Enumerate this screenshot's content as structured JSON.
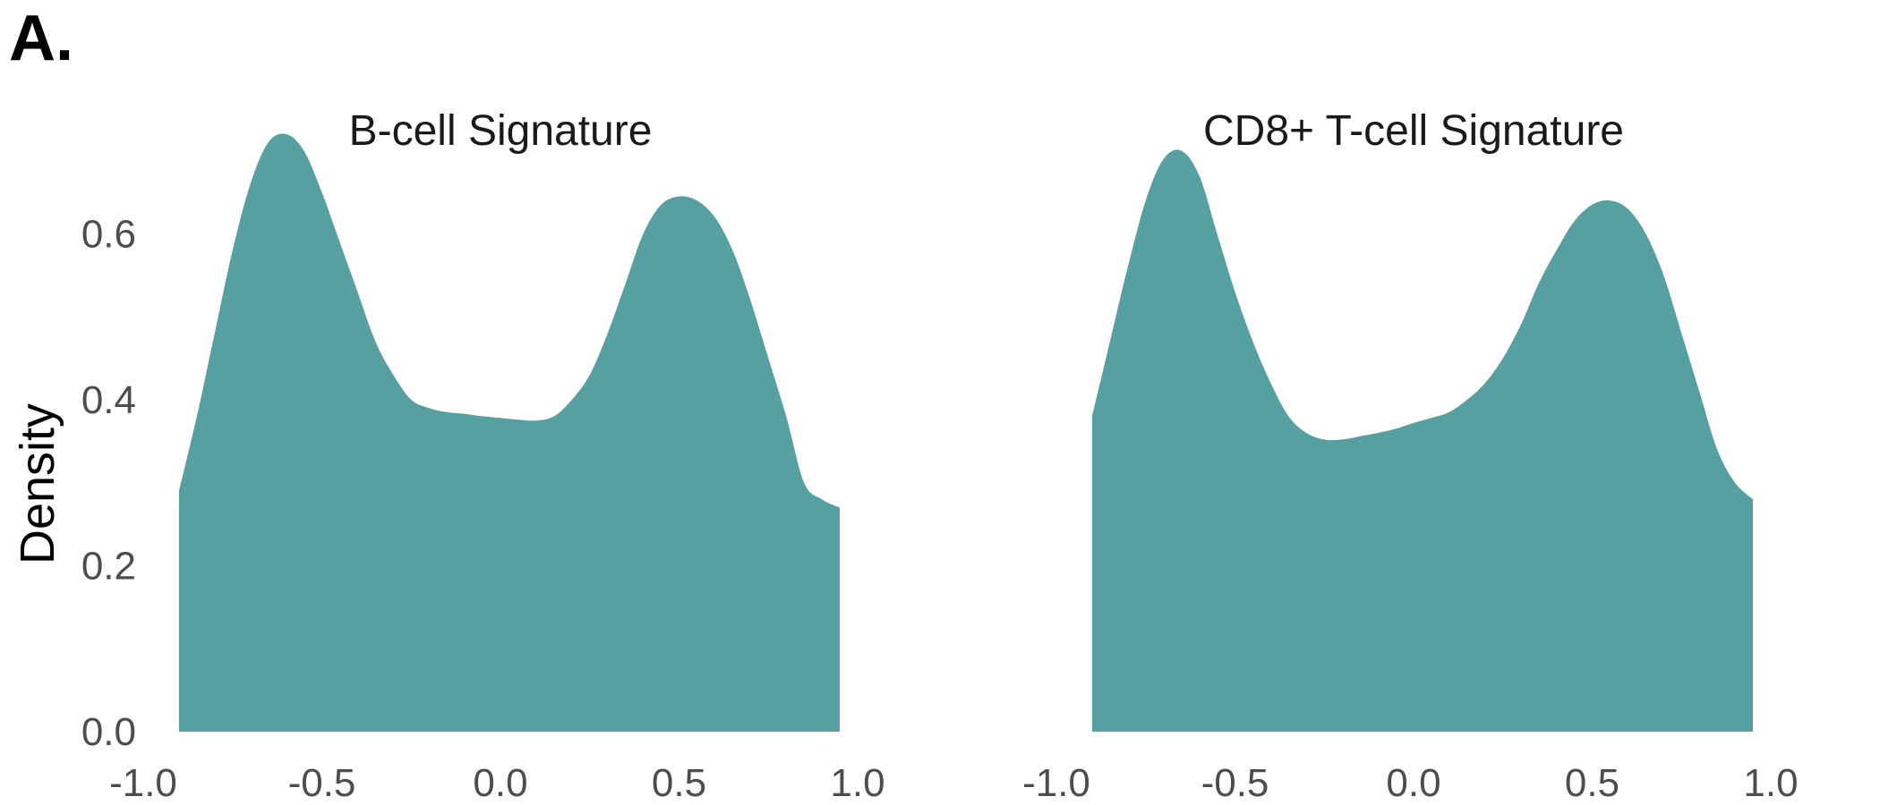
{
  "figure": {
    "panel_label": "A.",
    "ylabel": "Density"
  },
  "chart_data": [
    {
      "type": "area",
      "title": "B-cell Signature",
      "xlabel": "",
      "ylabel": "Density",
      "xlim": [
        -1.0,
        1.0
      ],
      "ylim": [
        0.0,
        0.72
      ],
      "x_ticks": [
        "-1.0",
        "-0.5",
        "0.0",
        "0.5",
        "1.0"
      ],
      "y_ticks": [
        "0.0",
        "0.2",
        "0.4",
        "0.6"
      ],
      "fill_color": "#56a0a2",
      "grid": false,
      "x": [
        -0.9,
        -0.85,
        -0.8,
        -0.75,
        -0.7,
        -0.65,
        -0.6,
        -0.55,
        -0.5,
        -0.45,
        -0.4,
        -0.35,
        -0.3,
        -0.25,
        -0.2,
        -0.15,
        -0.1,
        -0.05,
        0.0,
        0.05,
        0.1,
        0.15,
        0.2,
        0.25,
        0.3,
        0.35,
        0.4,
        0.45,
        0.5,
        0.55,
        0.6,
        0.65,
        0.7,
        0.75,
        0.8,
        0.85,
        0.9,
        0.95
      ],
      "y": [
        0.29,
        0.38,
        0.48,
        0.58,
        0.66,
        0.71,
        0.72,
        0.7,
        0.65,
        0.59,
        0.53,
        0.47,
        0.43,
        0.4,
        0.39,
        0.385,
        0.383,
        0.38,
        0.378,
        0.376,
        0.375,
        0.38,
        0.4,
        0.43,
        0.48,
        0.54,
        0.6,
        0.635,
        0.645,
        0.64,
        0.62,
        0.58,
        0.52,
        0.45,
        0.38,
        0.3,
        0.28,
        0.27
      ]
    },
    {
      "type": "area",
      "title": "CD8+ T-cell Signature",
      "xlabel": "",
      "ylabel": "",
      "xlim": [
        -1.0,
        1.0
      ],
      "ylim": [
        0.0,
        0.72
      ],
      "x_ticks": [
        "-1.0",
        "-0.5",
        "0.0",
        "0.5",
        "1.0"
      ],
      "y_ticks": [],
      "fill_color": "#56a0a2",
      "grid": false,
      "x": [
        -0.9,
        -0.85,
        -0.8,
        -0.75,
        -0.7,
        -0.65,
        -0.6,
        -0.55,
        -0.5,
        -0.45,
        -0.4,
        -0.35,
        -0.3,
        -0.25,
        -0.2,
        -0.15,
        -0.1,
        -0.05,
        0.0,
        0.05,
        0.1,
        0.15,
        0.2,
        0.25,
        0.3,
        0.35,
        0.4,
        0.45,
        0.5,
        0.55,
        0.6,
        0.65,
        0.7,
        0.75,
        0.8,
        0.85,
        0.9,
        0.95
      ],
      "y": [
        0.38,
        0.47,
        0.56,
        0.64,
        0.69,
        0.7,
        0.67,
        0.6,
        0.53,
        0.47,
        0.42,
        0.38,
        0.36,
        0.352,
        0.352,
        0.356,
        0.36,
        0.365,
        0.372,
        0.378,
        0.385,
        0.4,
        0.42,
        0.45,
        0.49,
        0.54,
        0.58,
        0.615,
        0.635,
        0.64,
        0.63,
        0.6,
        0.55,
        0.48,
        0.41,
        0.34,
        0.3,
        0.28
      ]
    }
  ]
}
